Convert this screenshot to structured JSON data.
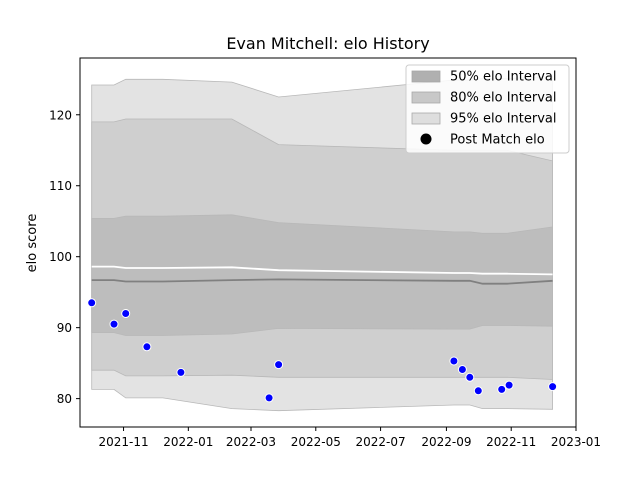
{
  "chart_data": {
    "type": "area",
    "title": "Evan Mitchell: elo History",
    "xlabel": "",
    "ylabel": "elo score",
    "x_axis_type": "date",
    "xlim": [
      "2021-09-21",
      "2023-01-01"
    ],
    "ylim": [
      76,
      128
    ],
    "x_ticks": [
      {
        "date": "2021-11-01",
        "label": "2021-11"
      },
      {
        "date": "2022-01-01",
        "label": "2022-01"
      },
      {
        "date": "2022-03-01",
        "label": "2022-03"
      },
      {
        "date": "2022-05-01",
        "label": "2022-05"
      },
      {
        "date": "2022-07-01",
        "label": "2022-07"
      },
      {
        "date": "2022-09-01",
        "label": "2022-09"
      },
      {
        "date": "2022-11-01",
        "label": "2022-11"
      },
      {
        "date": "2023-01-01",
        "label": "2023-01"
      }
    ],
    "y_ticks": [
      80,
      90,
      100,
      110,
      120
    ],
    "grid": false,
    "legend": {
      "position": "top-right",
      "entries": [
        "50% elo Interval",
        "80% elo Interval",
        "95% elo Interval",
        "Post Match elo"
      ]
    },
    "x": [
      "2021-10-02",
      "2021-10-23",
      "2021-11-03",
      "2021-12-08",
      "2022-02-11",
      "2022-03-27",
      "2022-09-08",
      "2022-09-23",
      "2022-10-05",
      "2022-10-28",
      "2022-12-10"
    ],
    "median": [
      96.7,
      96.7,
      96.5,
      96.5,
      96.7,
      96.8,
      96.6,
      96.6,
      96.2,
      96.2,
      96.6
    ],
    "mean": [
      98.6,
      98.6,
      98.4,
      98.4,
      98.5,
      98.1,
      97.7,
      97.7,
      97.6,
      97.6,
      97.5
    ],
    "bands": [
      {
        "name": "95% elo Interval",
        "color": "#e3e3e3",
        "lower": [
          81.3,
          81.3,
          80.1,
          80.1,
          78.6,
          78.3,
          79.1,
          79.1,
          78.6,
          78.6,
          78.5
        ],
        "upper": [
          124.2,
          124.2,
          125.0,
          125.0,
          124.6,
          122.5,
          124.9,
          124.9,
          125.1,
          125.1,
          125.4
        ]
      },
      {
        "name": "80% elo Interval",
        "color": "#cfcfcf",
        "lower": [
          84.0,
          84.0,
          83.2,
          83.2,
          83.3,
          83.0,
          83.0,
          83.0,
          83.0,
          83.0,
          82.7
        ],
        "upper": [
          119.0,
          119.0,
          119.4,
          119.4,
          119.4,
          115.8,
          115.0,
          115.0,
          115.0,
          115.0,
          113.5
        ]
      },
      {
        "name": "50% elo Interval",
        "color": "#bdbdbd",
        "lower": [
          89.3,
          89.3,
          88.9,
          88.9,
          89.1,
          89.9,
          89.8,
          89.8,
          90.3,
          90.3,
          90.2
        ],
        "upper": [
          105.4,
          105.4,
          105.7,
          105.7,
          105.9,
          104.8,
          103.5,
          103.5,
          103.3,
          103.3,
          104.2
        ]
      }
    ],
    "series": [
      {
        "name": "Post Match elo",
        "color": "#0000ff",
        "points": [
          {
            "x": "2021-10-02",
            "y": 93.5
          },
          {
            "x": "2021-10-23",
            "y": 90.5
          },
          {
            "x": "2021-11-03",
            "y": 92.0
          },
          {
            "x": "2021-11-23",
            "y": 87.3
          },
          {
            "x": "2021-12-25",
            "y": 83.7
          },
          {
            "x": "2022-03-18",
            "y": 80.1
          },
          {
            "x": "2022-03-27",
            "y": 84.8
          },
          {
            "x": "2022-09-08",
            "y": 85.3
          },
          {
            "x": "2022-09-16",
            "y": 84.1
          },
          {
            "x": "2022-09-23",
            "y": 83.0
          },
          {
            "x": "2022-10-01",
            "y": 81.1
          },
          {
            "x": "2022-10-23",
            "y": 81.3
          },
          {
            "x": "2022-10-30",
            "y": 81.9
          },
          {
            "x": "2022-12-10",
            "y": 81.7
          }
        ]
      }
    ]
  }
}
